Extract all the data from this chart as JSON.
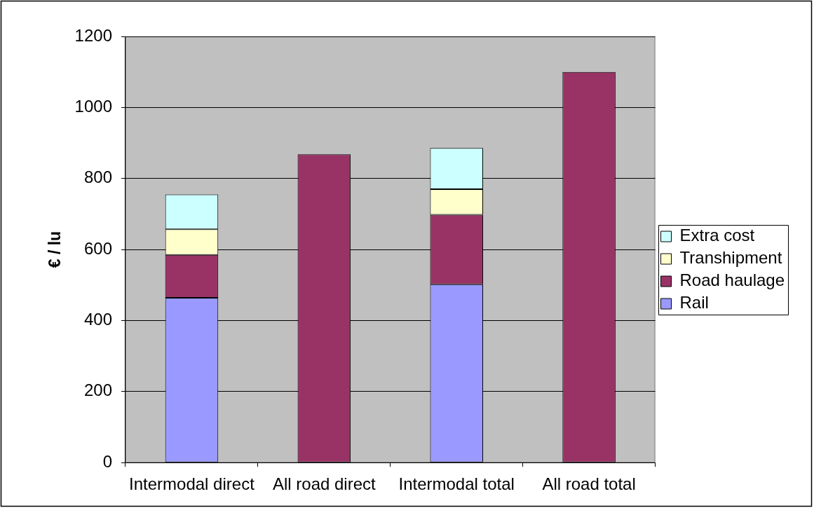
{
  "chart_data": {
    "type": "bar",
    "stacked": true,
    "ylabel": "€ / lu",
    "categories": [
      "Intermodal direct",
      "All road direct",
      "Intermodal total",
      "All road total"
    ],
    "series": [
      {
        "name": "Rail",
        "color": "#9999ff",
        "values": [
          464,
          null,
          502,
          null
        ]
      },
      {
        "name": "Road haulage",
        "color": "#993366",
        "values": [
          121,
          868,
          196,
          1100
        ]
      },
      {
        "name": "Transhipment",
        "color": "#ffffcc",
        "values": [
          72,
          null,
          72,
          null
        ]
      },
      {
        "name": "Extra cost",
        "color": "#ccffff",
        "values": [
          98,
          null,
          116,
          null
        ]
      }
    ],
    "ylim": [
      0,
      1200
    ],
    "yticks": [
      0,
      200,
      400,
      600,
      800,
      1000,
      1200
    ],
    "grid": "y",
    "legend": "right"
  }
}
